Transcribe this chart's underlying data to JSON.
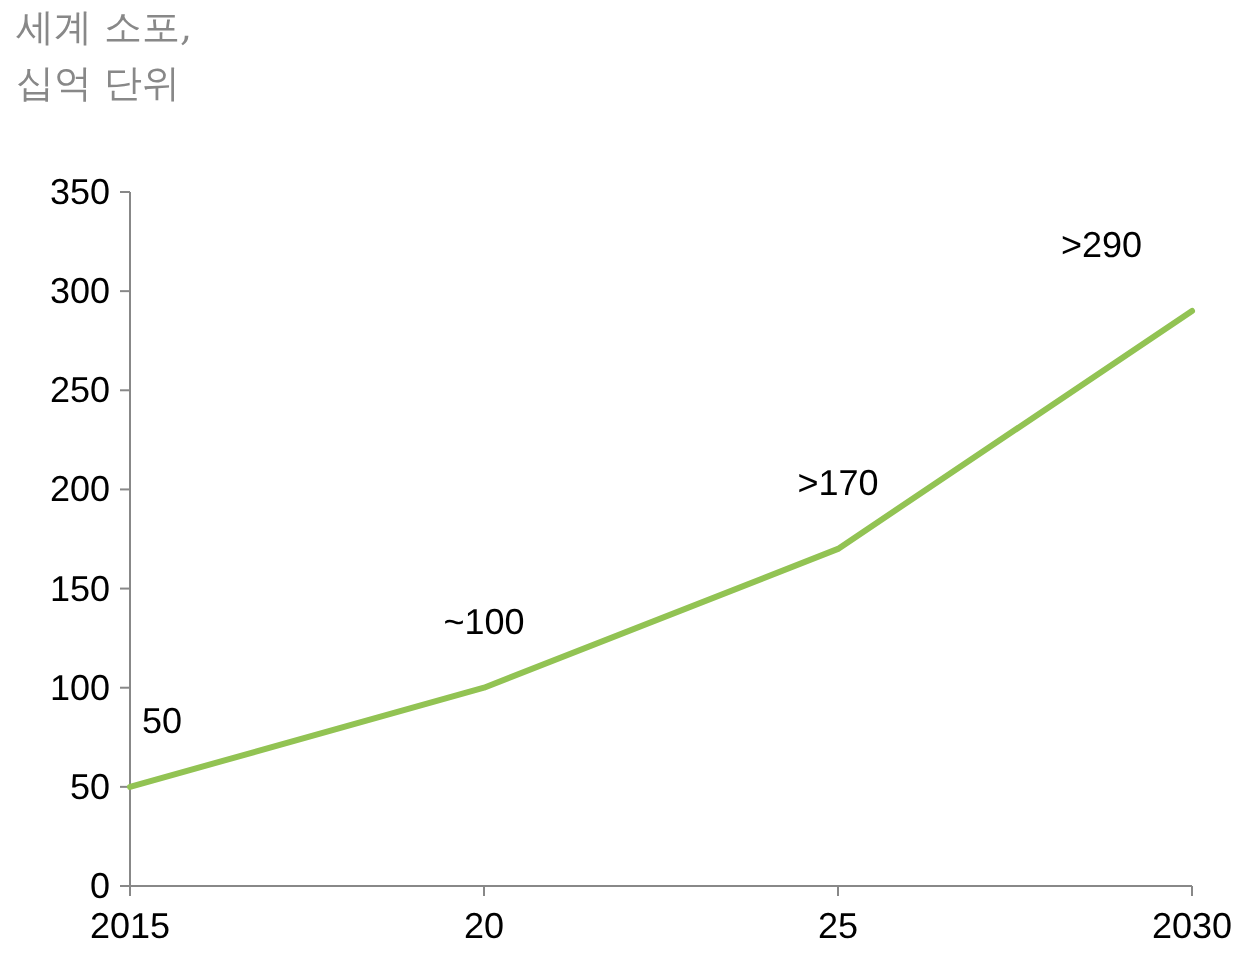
{
  "chart_data": {
    "type": "line",
    "ylabel": "세계 소포,\n십억 단위",
    "x": [
      2015,
      2020,
      2025,
      2030
    ],
    "series": [
      {
        "color": "#92c353",
        "values": [
          50,
          100,
          170,
          290
        ],
        "value_labels": [
          "50",
          "~100",
          ">170",
          ">290"
        ]
      }
    ],
    "xlim": [
      2015,
      2030
    ],
    "xticks": [
      2015,
      {
        "value": 2020,
        "label": "20"
      },
      {
        "value": 2025,
        "label": "25"
      },
      2030
    ],
    "ylim": [
      0,
      350
    ],
    "yticks": [
      0,
      50,
      100,
      150,
      200,
      250,
      300,
      350
    ],
    "grid": false,
    "marker": "none",
    "line_style": "solid"
  }
}
